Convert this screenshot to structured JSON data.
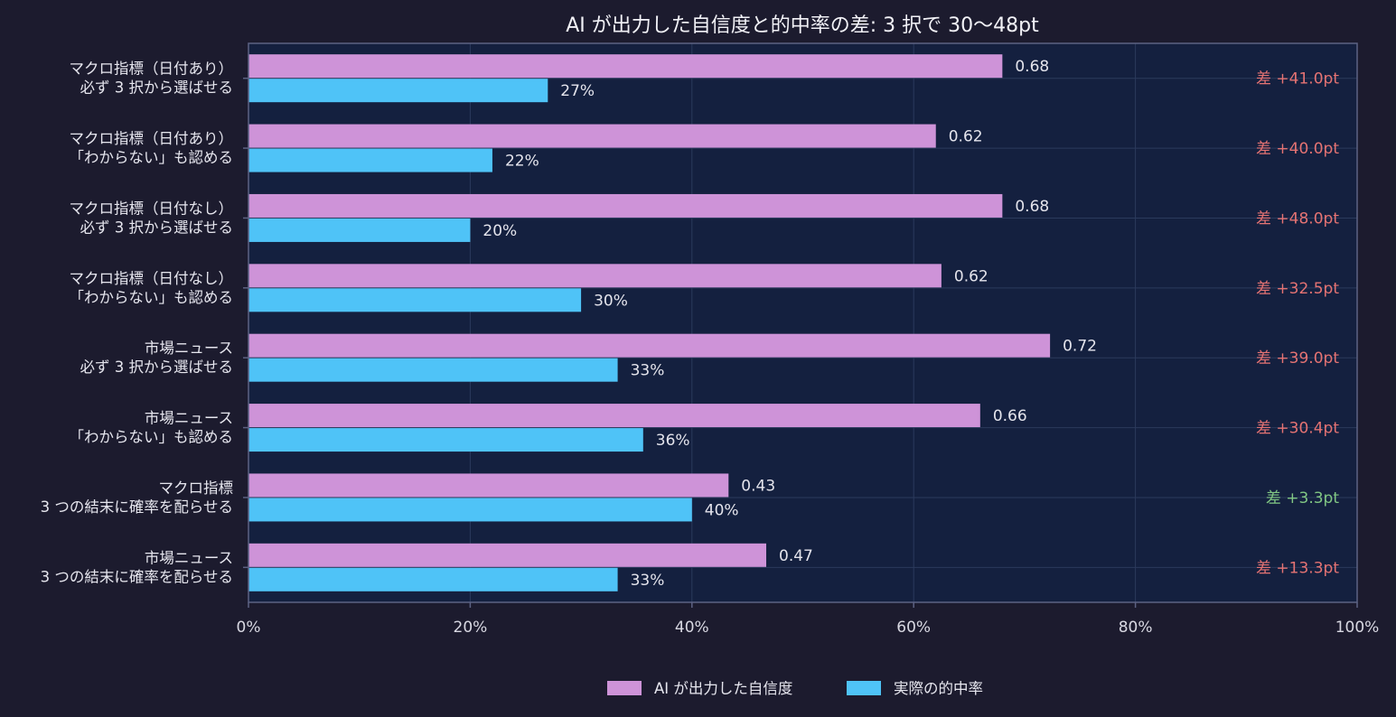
{
  "chart_data": {
    "type": "bar",
    "orientation": "horizontal",
    "title": "AI が出力した自信度と的中率の差: 3 択で 30〜48pt",
    "categories": [
      [
        "マクロ指標（日付あり）",
        "必ず 3 択から選ばせる"
      ],
      [
        "マクロ指標（日付あり）",
        "「わからない」も認める"
      ],
      [
        "マクロ指標（日付なし）",
        "必ず 3 択から選ばせる"
      ],
      [
        "マクロ指標（日付なし）",
        "「わからない」も認める"
      ],
      [
        "市場ニュース",
        "必ず 3 択から選ばせる"
      ],
      [
        "市場ニュース",
        "「わからない」も認める"
      ],
      [
        "マクロ指標",
        "3 つの結末に確率を配らせる"
      ],
      [
        "市場ニュース",
        "3 つの結末に確率を配らせる"
      ]
    ],
    "series": [
      {
        "name": "AI が出力した自信度",
        "color": "#ce93d8",
        "values": [
          0.68,
          0.62,
          0.68,
          0.625,
          0.723,
          0.66,
          0.433,
          0.467
        ],
        "labels": [
          "0.68",
          "0.62",
          "0.68",
          "0.62",
          "0.72",
          "0.66",
          "0.43",
          "0.47"
        ]
      },
      {
        "name": "実際の的中率",
        "color": "#4fc3f7",
        "values": [
          0.27,
          0.22,
          0.2,
          0.3,
          0.333,
          0.356,
          0.4,
          0.333
        ],
        "labels": [
          "27%",
          "22%",
          "20%",
          "30%",
          "33%",
          "36%",
          "40%",
          "33%"
        ]
      }
    ],
    "gaps": [
      {
        "label": "差 +41.0pt",
        "color": "#e57373"
      },
      {
        "label": "差 +40.0pt",
        "color": "#e57373"
      },
      {
        "label": "差 +48.0pt",
        "color": "#e57373"
      },
      {
        "label": "差 +32.5pt",
        "color": "#e57373"
      },
      {
        "label": "差 +39.0pt",
        "color": "#e57373"
      },
      {
        "label": "差 +30.4pt",
        "color": "#e57373"
      },
      {
        "label": "差 +3.3pt",
        "color": "#81c784"
      },
      {
        "label": "差 +13.3pt",
        "color": "#e57373"
      }
    ],
    "xlim": [
      0,
      1
    ],
    "xticks": [
      0,
      0.2,
      0.4,
      0.6,
      0.8,
      1.0
    ],
    "xtick_labels": [
      "0%",
      "20%",
      "40%",
      "60%",
      "80%",
      "100%"
    ],
    "grid": true,
    "legend_position": "bottom-center",
    "colors": {
      "background": "#1c1b2e",
      "plot_background": "#14203f",
      "frame": "#5d6284",
      "grid": "#2b3a5c"
    }
  }
}
